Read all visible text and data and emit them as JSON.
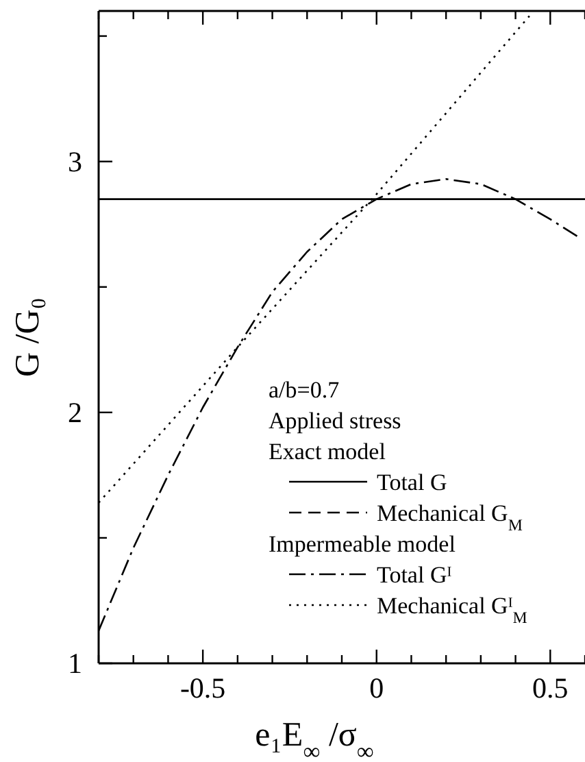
{
  "chart_data": {
    "type": "line",
    "xlabel": "e₁E$_{∞}$ /σ$_{∞}$",
    "ylabel": "G /G₀",
    "xlim": [
      -0.8,
      0.6
    ],
    "ylim": [
      1,
      3.6
    ],
    "xticks": [
      {
        "value": -0.8,
        "label": null
      },
      {
        "value": -0.7,
        "label": null
      },
      {
        "value": -0.6,
        "label": null
      },
      -0.5,
      {
        "value": -0.4,
        "label": null
      },
      {
        "value": -0.3,
        "label": null
      },
      {
        "value": -0.2,
        "label": null
      },
      {
        "value": -0.1,
        "label": null
      },
      0,
      {
        "value": 0.1,
        "label": null
      },
      {
        "value": 0.2,
        "label": null
      },
      {
        "value": 0.3,
        "label": null
      },
      {
        "value": 0.4,
        "label": null
      },
      0.5,
      {
        "value": 0.6,
        "label": null
      }
    ],
    "yticks": [
      1,
      {
        "value": 1.5,
        "label": null
      },
      2,
      {
        "value": 2.5,
        "label": null
      },
      3,
      {
        "value": 3.5,
        "label": null
      }
    ],
    "legend": "right",
    "annotations": [
      "a/b=0.7",
      "Applied stress",
      "Exact model",
      "Impermeable model"
    ],
    "series": [
      {
        "name": "Total G",
        "color": "#000000",
        "line_style": "solid",
        "x": [
          -0.8,
          0.6
        ],
        "values": [
          2.85,
          2.85
        ]
      },
      {
        "name": "Mechanical G$_{M}$",
        "color": "#000000",
        "line_style": "dashed"
      },
      {
        "name": "Total Gᴵ",
        "color": "#000000",
        "line_style": "dashdot",
        "x": [
          -0.8,
          -0.7,
          -0.6,
          -0.5,
          -0.4,
          -0.3,
          -0.2,
          -0.1,
          0,
          0.1,
          0.2,
          0.3,
          0.4,
          0.5,
          0.58
        ],
        "values": [
          1.13,
          1.46,
          1.75,
          2.02,
          2.26,
          2.48,
          2.64,
          2.77,
          2.85,
          2.91,
          2.93,
          2.91,
          2.85,
          2.77,
          2.7
        ]
      },
      {
        "name": "Mechanical Gᴵ$_{M}$",
        "color": "#000000",
        "line_style": "dotted",
        "x": [
          -0.8,
          -0.4,
          0,
          0.44
        ],
        "values": [
          1.64,
          2.26,
          2.87,
          3.58
        ]
      }
    ]
  }
}
